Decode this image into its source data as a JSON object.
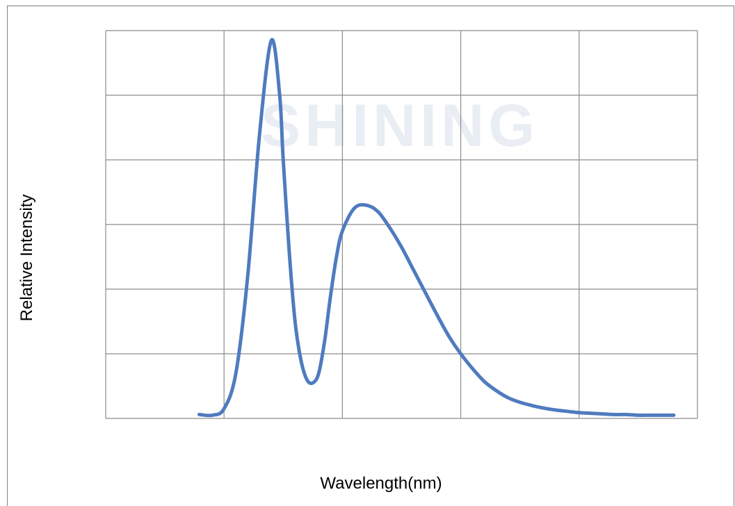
{
  "chart_data": {
    "type": "line",
    "title": "",
    "xlabel": "Wavelength(nm)",
    "ylabel": "Relative Intensity",
    "xlim": [
      0,
      5
    ],
    "ylim": [
      0,
      6
    ],
    "grid": true,
    "x_ticks_shown": false,
    "y_ticks_shown": false,
    "line_color": "#4f7bbf",
    "watermark": "SHINING",
    "series": [
      {
        "x": [
          0.79,
          0.9,
          1.0,
          1.1,
          1.2,
          1.3,
          1.4,
          1.47,
          1.5,
          1.55,
          1.6,
          1.65,
          1.7,
          1.75,
          1.8,
          1.85,
          1.9,
          1.95,
          2.0,
          2.1,
          2.2,
          2.3,
          2.4,
          2.5,
          2.6,
          2.7,
          2.8,
          2.9,
          3.0,
          3.1,
          3.2,
          3.3,
          3.4,
          3.5,
          3.6,
          3.7,
          3.8,
          3.9,
          4.0,
          4.1,
          4.2,
          4.3,
          4.4,
          4.5,
          4.6,
          4.7,
          4.8
        ],
        "y": [
          0.06,
          0.05,
          0.15,
          0.7,
          2.2,
          4.4,
          5.85,
          5.0,
          4.0,
          2.6,
          1.5,
          0.9,
          0.6,
          0.55,
          0.7,
          1.2,
          1.9,
          2.5,
          2.9,
          3.25,
          3.3,
          3.2,
          2.95,
          2.65,
          2.3,
          1.95,
          1.6,
          1.27,
          1.0,
          0.77,
          0.57,
          0.43,
          0.32,
          0.25,
          0.2,
          0.16,
          0.13,
          0.11,
          0.09,
          0.08,
          0.07,
          0.06,
          0.06,
          0.05,
          0.05,
          0.05,
          0.05
        ]
      }
    ]
  }
}
